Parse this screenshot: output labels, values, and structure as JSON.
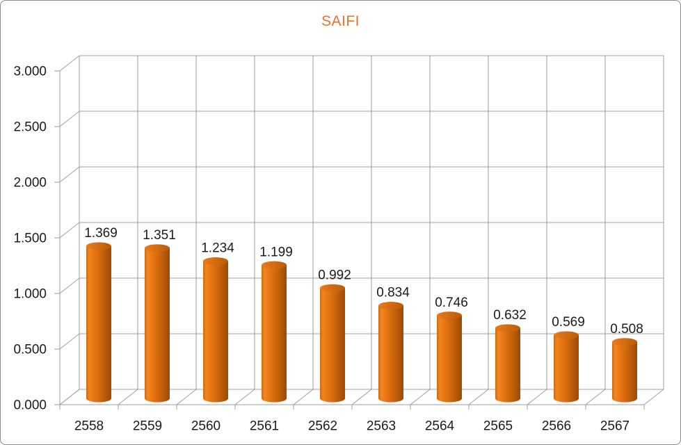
{
  "window": {
    "background": "#ffffff",
    "border_color": "#8a8a8a"
  },
  "chart_data": {
    "type": "bar",
    "style": "3d-cylinder",
    "title": "SAIFI",
    "categories": [
      "2558",
      "2559",
      "2560",
      "2561",
      "2562",
      "2563",
      "2564",
      "2565",
      "2566",
      "2567"
    ],
    "values": [
      1.369,
      1.351,
      1.234,
      1.199,
      0.992,
      0.834,
      0.746,
      0.632,
      0.569,
      0.508
    ],
    "value_labels": [
      "1.369",
      "1.351",
      "1.234",
      "1.199",
      "0.992",
      "0.834",
      "0.746",
      "0.632",
      "0.569",
      "0.508"
    ],
    "xlabel": "",
    "ylabel": "",
    "ylim": [
      0,
      3
    ],
    "ytick_step": 0.5,
    "ytick_decimals": 3,
    "grid": true,
    "legend": "none",
    "colors": {
      "title": "#ED7125",
      "axis_text": "#1a1a1a",
      "gridline": "#9e9e9e",
      "bar_body_gradient": [
        "#CF6A12",
        "#F2861F",
        "#E87713",
        "#CC650D",
        "#AE5407",
        "#9B4A05"
      ],
      "bar_top_gradient": [
        "#E97C1B",
        "#BA5B08"
      ]
    }
  }
}
